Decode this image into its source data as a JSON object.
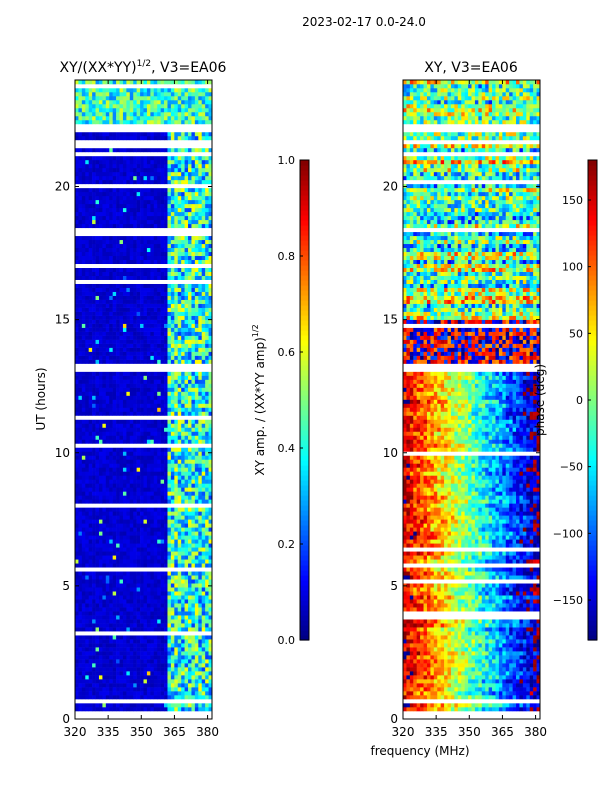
{
  "suptitle": "2023-02-17 0.0-24.0",
  "colors": {
    "jet": [
      "#00007f",
      "#0000ff",
      "#007fff",
      "#00ffff",
      "#7fff7f",
      "#ffff00",
      "#ff7f00",
      "#ff0000",
      "#7f0000"
    ],
    "background": "#ffffff",
    "flag": "#ffffff"
  },
  "chart_data": [
    {
      "type": "heatmap",
      "title_main": "XY/(XX*YY)",
      "title_sup": "1/2",
      "title_rest": ", V3=EA06",
      "xlabel": "",
      "ylabel": "UT (hours)",
      "xlim": [
        320,
        382
      ],
      "ylim": [
        0,
        24
      ],
      "xticks": [
        "320",
        "335",
        "350",
        "365",
        "380"
      ],
      "xtick_values": [
        320,
        335,
        350,
        365,
        380
      ],
      "yticks": [
        "0",
        "5",
        "10",
        "15",
        "20"
      ],
      "ytick_values": [
        0,
        5,
        10,
        15,
        20
      ],
      "colorbar": {
        "label_main": "XY amp. / (XX*YY amp)",
        "label_sup": "1/2",
        "range": [
          0,
          1
        ],
        "ticks": [
          "0.0",
          "0.2",
          "0.4",
          "0.6",
          "0.8",
          "1.0"
        ],
        "tick_values": [
          0.0,
          0.2,
          0.4,
          0.6,
          0.8,
          1.0
        ]
      },
      "flagged_ut_ranges": [
        [
          0.0,
          0.3
        ],
        [
          0.55,
          0.75
        ],
        [
          13.1,
          13.3
        ],
        [
          21.1,
          21.35
        ],
        [
          21.6,
          21.8
        ],
        [
          22.1,
          22.3
        ]
      ],
      "description_values": {
        "low_band_mhz": [
          320,
          362
        ],
        "low_band_typical": 0.05,
        "high_band_mhz": [
          362,
          382
        ],
        "high_band_typical": 0.45
      }
    },
    {
      "type": "heatmap",
      "title_main": "XY, V3=EA06",
      "xlabel": "frequency (MHz)",
      "ylabel": "",
      "xlim": [
        320,
        382
      ],
      "ylim": [
        0,
        24
      ],
      "xticks": [
        "320",
        "335",
        "350",
        "365",
        "380"
      ],
      "xtick_values": [
        320,
        335,
        350,
        365,
        380
      ],
      "yticks": [
        "0",
        "5",
        "10",
        "15",
        "20"
      ],
      "ytick_values": [
        0,
        5,
        10,
        15,
        20
      ],
      "colorbar": {
        "label_main": "phase (deg)",
        "range": [
          -180,
          180
        ],
        "ticks": [
          "−150",
          "−100",
          "−50",
          "0",
          "50",
          "100",
          "150"
        ],
        "tick_values": [
          -150,
          -100,
          -50,
          0,
          50,
          100,
          150
        ]
      },
      "flagged_ut_ranges": [
        [
          0.0,
          0.3
        ],
        [
          0.55,
          0.75
        ],
        [
          13.1,
          13.3
        ],
        [
          21.1,
          21.35
        ],
        [
          21.6,
          21.8
        ],
        [
          22.1,
          22.3
        ]
      ],
      "description_values": {
        "phase_range_deg": [
          -180,
          180
        ]
      }
    }
  ]
}
